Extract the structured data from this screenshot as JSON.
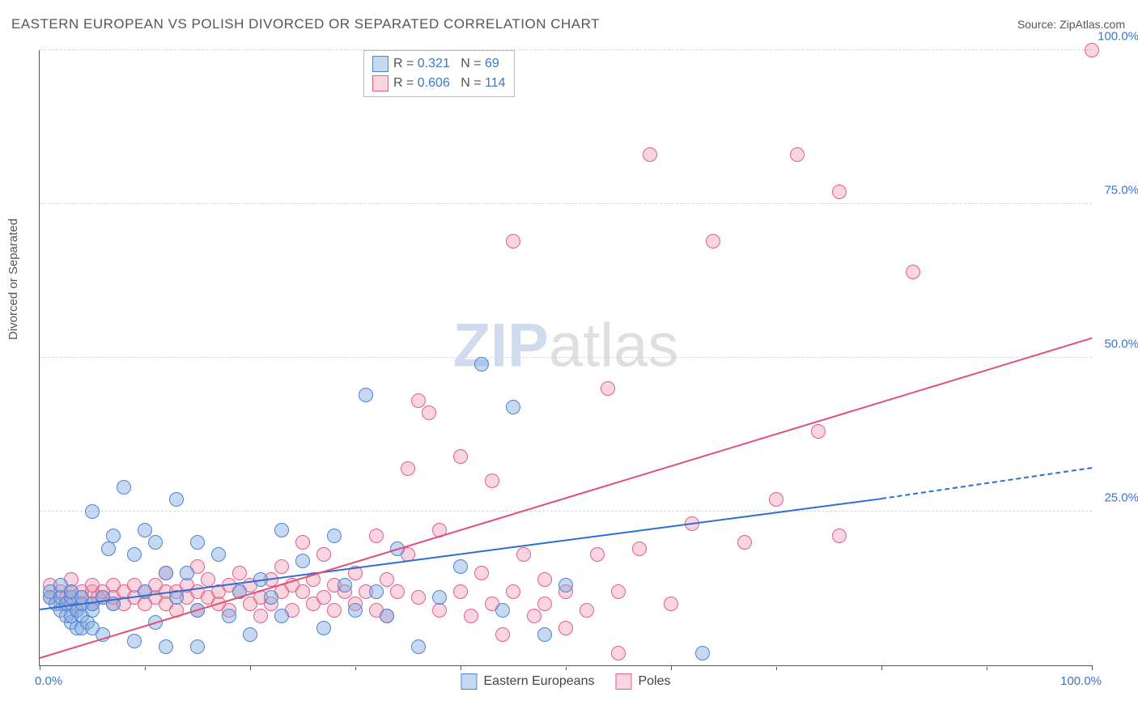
{
  "title": "EASTERN EUROPEAN VS POLISH DIVORCED OR SEPARATED CORRELATION CHART",
  "source_label": "Source: ZipAtlas.com",
  "ylabel": "Divorced or Separated",
  "watermark": {
    "part1": "ZIP",
    "part2": "atlas"
  },
  "colors": {
    "blue_fill": "rgba(130,170,225,0.45)",
    "blue_stroke": "#4a85d6",
    "pink_fill": "rgba(240,150,175,0.40)",
    "pink_stroke": "#e15f8a",
    "blue_line": "#2b6fd4",
    "pink_line": "#e15078",
    "tick_label_color": "#3d75c7",
    "grid_color": "#d8d8d8"
  },
  "xlim": [
    0,
    100
  ],
  "ylim": [
    0,
    100
  ],
  "y_ticks": [
    {
      "v": 25,
      "label": "25.0%"
    },
    {
      "v": 50,
      "label": "50.0%"
    },
    {
      "v": 75,
      "label": "75.0%"
    },
    {
      "v": 100,
      "label": "100.0%"
    }
  ],
  "x_axis_labels": {
    "left": "0.0%",
    "right": "100.0%"
  },
  "x_minor_ticks_step": 10,
  "stats": [
    {
      "series": "blue",
      "R_label": "R =",
      "R": "0.321",
      "N_label": "N =",
      "N": "69"
    },
    {
      "series": "pink",
      "R_label": "R =",
      "R": "0.606",
      "N_label": "N =",
      "N": "114"
    }
  ],
  "bottom_legend": [
    {
      "series": "blue",
      "label": "Eastern Europeans"
    },
    {
      "series": "pink",
      "label": "Poles"
    }
  ],
  "trend_lines": {
    "blue": {
      "x1": 0,
      "y1": 9,
      "x2": 80,
      "y2": 27,
      "dash_to_x": 100,
      "dash_to_y": 32
    },
    "pink": {
      "x1": 0,
      "y1": 1,
      "x2": 100,
      "y2": 53
    }
  },
  "series_blue": [
    [
      1,
      11
    ],
    [
      1,
      12
    ],
    [
      1.5,
      10
    ],
    [
      2,
      9
    ],
    [
      2,
      11
    ],
    [
      2,
      13
    ],
    [
      2.5,
      8
    ],
    [
      2.5,
      10
    ],
    [
      3,
      7
    ],
    [
      3,
      8
    ],
    [
      3,
      11
    ],
    [
      3,
      12
    ],
    [
      3.5,
      6
    ],
    [
      3.5,
      9
    ],
    [
      4,
      6
    ],
    [
      4,
      8
    ],
    [
      4,
      10
    ],
    [
      4,
      11
    ],
    [
      4.5,
      7
    ],
    [
      5,
      6
    ],
    [
      5,
      9
    ],
    [
      5,
      10
    ],
    [
      5,
      25
    ],
    [
      6,
      5
    ],
    [
      6,
      11
    ],
    [
      6.5,
      19
    ],
    [
      7,
      10
    ],
    [
      7,
      21
    ],
    [
      8,
      29
    ],
    [
      9,
      4
    ],
    [
      9,
      18
    ],
    [
      10,
      22
    ],
    [
      10,
      12
    ],
    [
      11,
      20
    ],
    [
      11,
      7
    ],
    [
      12,
      3
    ],
    [
      12,
      15
    ],
    [
      13,
      11
    ],
    [
      13,
      27
    ],
    [
      14,
      15
    ],
    [
      15,
      9
    ],
    [
      15,
      20
    ],
    [
      15,
      3
    ],
    [
      17,
      18
    ],
    [
      18,
      8
    ],
    [
      19,
      12
    ],
    [
      20,
      5
    ],
    [
      21,
      14
    ],
    [
      22,
      11
    ],
    [
      23,
      8
    ],
    [
      23,
      22
    ],
    [
      25,
      17
    ],
    [
      27,
      6
    ],
    [
      28,
      21
    ],
    [
      29,
      13
    ],
    [
      30,
      9
    ],
    [
      31,
      44
    ],
    [
      32,
      12
    ],
    [
      33,
      8
    ],
    [
      34,
      19
    ],
    [
      36,
      3
    ],
    [
      38,
      11
    ],
    [
      40,
      16
    ],
    [
      42,
      49
    ],
    [
      44,
      9
    ],
    [
      45,
      42
    ],
    [
      48,
      5
    ],
    [
      50,
      13
    ],
    [
      63,
      2
    ]
  ],
  "series_pink": [
    [
      1,
      13
    ],
    [
      1,
      11
    ],
    [
      2,
      10
    ],
    [
      2,
      12
    ],
    [
      2.5,
      11
    ],
    [
      3,
      12
    ],
    [
      3,
      10
    ],
    [
      3,
      14
    ],
    [
      3.5,
      9
    ],
    [
      4,
      12
    ],
    [
      4,
      10
    ],
    [
      4,
      11
    ],
    [
      5,
      12
    ],
    [
      5,
      10
    ],
    [
      5,
      13
    ],
    [
      5.5,
      11
    ],
    [
      6,
      11
    ],
    [
      6,
      12
    ],
    [
      7,
      10
    ],
    [
      7,
      13
    ],
    [
      7,
      11
    ],
    [
      8,
      12
    ],
    [
      8,
      10
    ],
    [
      9,
      11
    ],
    [
      9,
      13
    ],
    [
      10,
      12
    ],
    [
      10,
      10
    ],
    [
      11,
      11
    ],
    [
      11,
      13
    ],
    [
      12,
      12
    ],
    [
      12,
      10
    ],
    [
      12,
      15
    ],
    [
      13,
      12
    ],
    [
      13,
      9
    ],
    [
      14,
      11
    ],
    [
      14,
      13
    ],
    [
      15,
      12
    ],
    [
      15,
      9
    ],
    [
      15,
      16
    ],
    [
      16,
      11
    ],
    [
      16,
      14
    ],
    [
      17,
      10
    ],
    [
      17,
      12
    ],
    [
      18,
      13
    ],
    [
      18,
      9
    ],
    [
      19,
      12
    ],
    [
      19,
      15
    ],
    [
      20,
      10
    ],
    [
      20,
      13
    ],
    [
      21,
      11
    ],
    [
      21,
      8
    ],
    [
      22,
      14
    ],
    [
      22,
      10
    ],
    [
      23,
      12
    ],
    [
      23,
      16
    ],
    [
      24,
      9
    ],
    [
      24,
      13
    ],
    [
      25,
      12
    ],
    [
      25,
      20
    ],
    [
      26,
      10
    ],
    [
      26,
      14
    ],
    [
      27,
      11
    ],
    [
      27,
      18
    ],
    [
      28,
      13
    ],
    [
      28,
      9
    ],
    [
      29,
      12
    ],
    [
      30,
      10
    ],
    [
      30,
      15
    ],
    [
      31,
      12
    ],
    [
      32,
      9
    ],
    [
      32,
      21
    ],
    [
      33,
      14
    ],
    [
      33,
      8
    ],
    [
      34,
      12
    ],
    [
      35,
      32
    ],
    [
      35,
      18
    ],
    [
      36,
      43
    ],
    [
      36,
      11
    ],
    [
      37,
      41
    ],
    [
      38,
      9
    ],
    [
      38,
      22
    ],
    [
      40,
      12
    ],
    [
      40,
      34
    ],
    [
      41,
      8
    ],
    [
      42,
      15
    ],
    [
      43,
      10
    ],
    [
      43,
      30
    ],
    [
      44,
      5
    ],
    [
      45,
      12
    ],
    [
      45,
      69
    ],
    [
      46,
      18
    ],
    [
      47,
      8
    ],
    [
      48,
      10
    ],
    [
      48,
      14
    ],
    [
      50,
      6
    ],
    [
      50,
      12
    ],
    [
      52,
      9
    ],
    [
      53,
      18
    ],
    [
      54,
      45
    ],
    [
      55,
      12
    ],
    [
      55,
      2
    ],
    [
      57,
      19
    ],
    [
      58,
      83
    ],
    [
      60,
      10
    ],
    [
      62,
      23
    ],
    [
      64,
      69
    ],
    [
      67,
      20
    ],
    [
      70,
      27
    ],
    [
      72,
      83
    ],
    [
      74,
      38
    ],
    [
      76,
      21
    ],
    [
      76,
      77
    ],
    [
      83,
      64
    ],
    [
      100,
      100
    ]
  ]
}
